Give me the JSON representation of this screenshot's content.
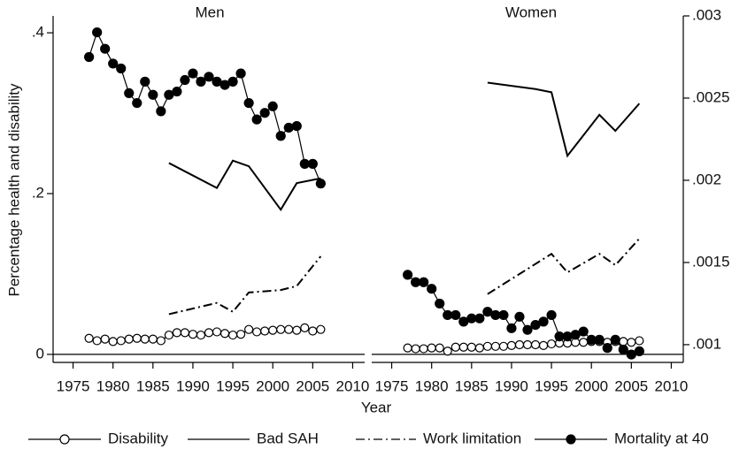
{
  "chart_data": [
    {
      "type": "line",
      "title": "Men",
      "xlabel": "Year",
      "ylabel": "Percentage  health and disability",
      "xlim": [
        1972.5,
        2011.5
      ],
      "xticks": [
        1975,
        1980,
        1985,
        1990,
        1995,
        2000,
        2005,
        2010
      ],
      "ylim": [
        -0.01,
        0.421
      ],
      "yticks": [
        0,
        {
          "value": 0.2,
          "label": ".2"
        },
        {
          "value": 0.4,
          "label": ".4"
        }
      ],
      "series": [
        {
          "name": "Disability",
          "color": "#000000",
          "marker": "hollow",
          "x": [
            1977,
            1978,
            1979,
            1980,
            1981,
            1982,
            1983,
            1984,
            1985,
            1986,
            1987,
            1988,
            1989,
            1990,
            1991,
            1992,
            1993,
            1994,
            1995,
            1996,
            1997,
            1998,
            1999,
            2000,
            2001,
            2002,
            2003,
            2004,
            2005,
            2006
          ],
          "values": [
            0.02,
            0.017,
            0.019,
            0.016,
            0.017,
            0.019,
            0.02,
            0.019,
            0.019,
            0.017,
            0.024,
            0.027,
            0.027,
            0.025,
            0.024,
            0.027,
            0.028,
            0.026,
            0.024,
            0.025,
            0.031,
            0.028,
            0.029,
            0.03,
            0.031,
            0.031,
            0.03,
            0.033,
            0.029,
            0.031
          ]
        },
        {
          "name": "Bad SAH",
          "color": "#000000",
          "x": [
            1987,
            1993,
            1995,
            1997,
            2001,
            2003,
            2006
          ],
          "values": [
            0.238,
            0.207,
            0.241,
            0.234,
            0.18,
            0.213,
            0.219
          ]
        },
        {
          "name": "Work limitation",
          "color": "#000000",
          "dash": "dashdot",
          "x": [
            1987,
            1993,
            1995,
            1997,
            2001,
            2003,
            2006
          ],
          "values": [
            0.05,
            0.064,
            0.053,
            0.077,
            0.08,
            0.085,
            0.122
          ]
        },
        {
          "name": "Mortality at 40",
          "color": "#000000",
          "marker": "filled",
          "axis": "y2",
          "x": [
            1977,
            1978,
            1979,
            1980,
            1981,
            1982,
            1983,
            1984,
            1985,
            1986,
            1987,
            1988,
            1989,
            1990,
            1991,
            1992,
            1993,
            1994,
            1995,
            1996,
            1997,
            1998,
            1999,
            2000,
            2001,
            2002,
            2003,
            2004,
            2005,
            2006
          ],
          "values": [
            0.00275,
            0.0029,
            0.0028,
            0.00271,
            0.00268,
            0.00253,
            0.00247,
            0.0026,
            0.00252,
            0.00242,
            0.00252,
            0.00254,
            0.00261,
            0.00265,
            0.0026,
            0.00263,
            0.0026,
            0.00258,
            0.0026,
            0.00265,
            0.00247,
            0.00237,
            0.00241,
            0.00245,
            0.00227,
            0.00232,
            0.00233,
            0.0021,
            0.0021,
            0.00198
          ]
        }
      ]
    },
    {
      "type": "line",
      "title": "Women",
      "xlim": [
        1972.5,
        2011.5
      ],
      "xticks": [
        1975,
        1980,
        1985,
        1990,
        1995,
        2000,
        2005,
        2010
      ],
      "y2lim": [
        0.000892,
        0.003
      ],
      "y2ticks": [
        {
          "value": 0.001,
          "label": ".001"
        },
        {
          "value": 0.0015,
          "label": ".0015"
        },
        {
          "value": 0.002,
          "label": ".002"
        },
        {
          "value": 0.0025,
          "label": ".0025"
        },
        {
          "value": 0.003,
          "label": ".003"
        }
      ],
      "series": [
        {
          "color": "#000000",
          "marker": "hollow",
          "x": [
            1977,
            1978,
            1979,
            1980,
            1981,
            1982,
            1983,
            1984,
            1985,
            1986,
            1987,
            1988,
            1989,
            1990,
            1991,
            1992,
            1993,
            1994,
            1995,
            1996,
            1997,
            1998,
            1999,
            2000,
            2001,
            2002,
            2003,
            2004,
            2005,
            2006
          ],
          "values": [
            0.008,
            0.007,
            0.007,
            0.008,
            0.008,
            0.004,
            0.009,
            0.009,
            0.009,
            0.008,
            0.01,
            0.01,
            0.01,
            0.011,
            0.012,
            0.012,
            0.012,
            0.011,
            0.013,
            0.014,
            0.014,
            0.015,
            0.015,
            0.016,
            0.016,
            0.015,
            0.016,
            0.016,
            0.015,
            0.017
          ]
        },
        {
          "color": "#000000",
          "x": [
            1987,
            1993,
            1995,
            1997,
            2001,
            2003,
            2006
          ],
          "values": [
            0.338,
            0.33,
            0.326,
            0.247,
            0.298,
            0.278,
            0.312
          ]
        },
        {
          "color": "#000000",
          "dash": "dashdot",
          "x": [
            1987,
            1995,
            1997,
            2001,
            2003,
            2006
          ],
          "values": [
            0.075,
            0.125,
            0.102,
            0.125,
            0.111,
            0.144
          ]
        },
        {
          "color": "#000000",
          "marker": "filled",
          "axis": "y2",
          "x": [
            1977,
            1978,
            1979,
            1980,
            1981,
            1982,
            1983,
            1984,
            1985,
            1986,
            1987,
            1988,
            1989,
            1990,
            1991,
            1992,
            1993,
            1994,
            1995,
            1996,
            1997,
            1998,
            1999,
            2000,
            2001,
            2002,
            2003,
            2004,
            2005,
            2006
          ],
          "values": [
            0.001425,
            0.00138,
            0.00138,
            0.00134,
            0.00125,
            0.00118,
            0.00118,
            0.00114,
            0.00116,
            0.00116,
            0.0012,
            0.00118,
            0.00118,
            0.0011,
            0.00117,
            0.00109,
            0.00112,
            0.00114,
            0.00118,
            0.00105,
            0.00105,
            0.00106,
            0.00108,
            0.00103,
            0.00103,
            0.00098,
            0.00103,
            0.00097,
            0.00094,
            0.00096
          ]
        }
      ]
    }
  ]
}
